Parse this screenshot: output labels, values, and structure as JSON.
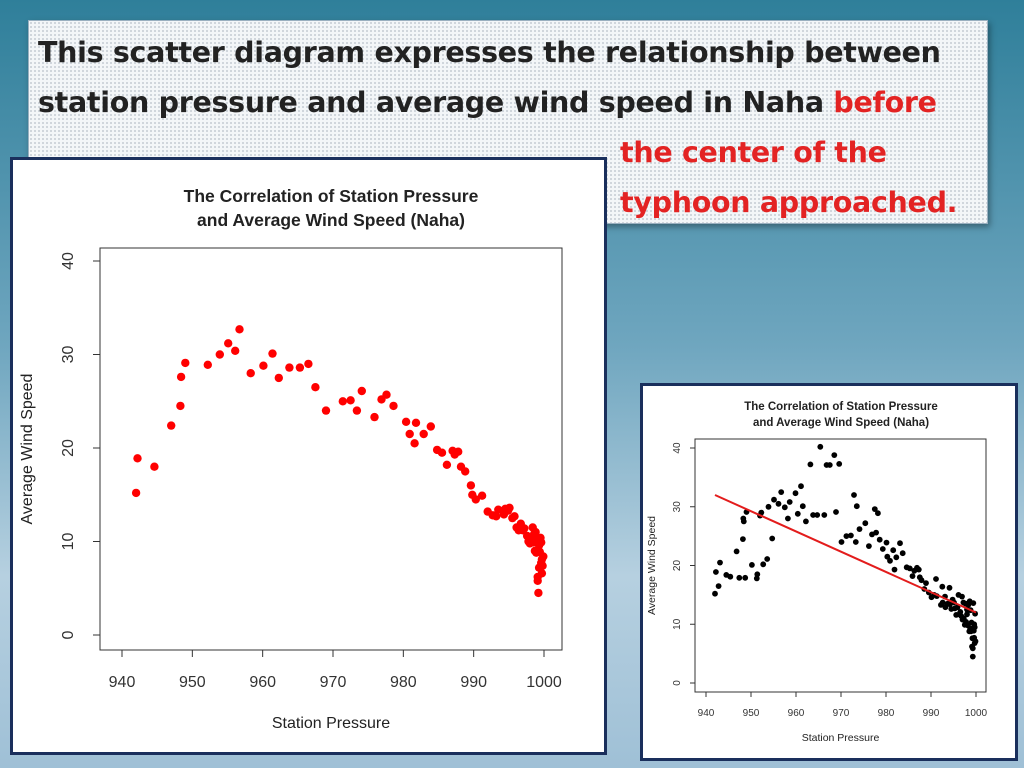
{
  "banner": {
    "line1": "This scatter diagram expresses the relationship between",
    "line2_black": "station pressure and average wind speed in Naha ",
    "line2_red": "before",
    "line3_red": "the center of the",
    "line4_red": "typhoon approached."
  },
  "colors": {
    "left_points": "#ff0000",
    "right_points": "#000000",
    "regression_line": "#e31c1c",
    "emphasis_text": "#e32323"
  },
  "chart_data": [
    {
      "type": "scatter",
      "title_line1": "The Correlation of Station Pressure",
      "title_line2": "and Average Wind Speed (Naha)",
      "xlabel": "Station Pressure",
      "ylabel": "Average Wind Speed",
      "xlim": [
        940,
        1000
      ],
      "ylim": [
        0,
        40
      ],
      "xticks": [
        940,
        950,
        960,
        970,
        980,
        990,
        1000
      ],
      "yticks": [
        0,
        10,
        20,
        30,
        40
      ],
      "series": [
        {
          "color": "#ff0000",
          "points": [
            [
              942,
              15.2
            ],
            [
              942.2,
              18.9
            ],
            [
              944.6,
              18
            ],
            [
              947,
              22.4
            ],
            [
              948.3,
              24.5
            ],
            [
              948.4,
              27.6
            ],
            [
              949,
              29.1
            ],
            [
              952.2,
              28.9
            ],
            [
              953.9,
              30
            ],
            [
              955.1,
              31.2
            ],
            [
              956.1,
              30.4
            ],
            [
              956.7,
              32.7
            ],
            [
              958.3,
              28
            ],
            [
              960.1,
              28.8
            ],
            [
              961.4,
              30.1
            ],
            [
              962.3,
              27.5
            ],
            [
              963.8,
              28.6
            ],
            [
              965.3,
              28.6
            ],
            [
              966.5,
              29
            ],
            [
              967.5,
              26.5
            ],
            [
              969,
              24
            ],
            [
              971.4,
              25
            ],
            [
              972.5,
              25.1
            ],
            [
              973.4,
              24
            ],
            [
              974.1,
              26.1
            ],
            [
              975.9,
              23.3
            ],
            [
              976.9,
              25.2
            ],
            [
              977.6,
              25.7
            ],
            [
              978.6,
              24.5
            ],
            [
              980.4,
              22.8
            ],
            [
              980.9,
              21.5
            ],
            [
              981.6,
              20.5
            ],
            [
              981.8,
              22.7
            ],
            [
              982.9,
              21.5
            ],
            [
              983.9,
              22.3
            ],
            [
              984.8,
              19.8
            ],
            [
              985.5,
              19.5
            ],
            [
              986.2,
              18.2
            ],
            [
              987,
              19.7
            ],
            [
              987.3,
              19.3
            ],
            [
              987.8,
              19.6
            ],
            [
              988.2,
              18
            ],
            [
              988.8,
              17.5
            ],
            [
              989.6,
              16
            ],
            [
              989.8,
              15
            ],
            [
              990.3,
              14.5
            ],
            [
              991.2,
              14.9
            ],
            [
              992,
              13.2
            ],
            [
              992.7,
              12.8
            ],
            [
              993.2,
              12.7
            ],
            [
              993.5,
              13.4
            ],
            [
              994.3,
              12.9
            ],
            [
              994.5,
              13.5
            ],
            [
              994.9,
              13.3
            ],
            [
              995.1,
              13.6
            ],
            [
              995.5,
              12.5
            ],
            [
              995.8,
              12.7
            ],
            [
              996.1,
              11.5
            ],
            [
              996.4,
              11.2
            ],
            [
              996.7,
              11.9
            ],
            [
              997,
              11.2
            ],
            [
              997.2,
              11.4
            ],
            [
              997.6,
              10.6
            ],
            [
              997.8,
              10
            ],
            [
              998,
              9.8
            ],
            [
              998.2,
              10.4
            ],
            [
              998.4,
              11.5
            ],
            [
              998.5,
              9.9
            ],
            [
              998.6,
              10.8
            ],
            [
              998.7,
              9
            ],
            [
              998.8,
              11
            ],
            [
              998.9,
              8.8
            ],
            [
              999,
              10.2
            ],
            [
              999.1,
              6.2
            ],
            [
              999.1,
              5.8
            ],
            [
              999.2,
              4.5
            ],
            [
              999.3,
              9.6
            ],
            [
              999.3,
              7.2
            ],
            [
              999.4,
              8.9
            ],
            [
              999.5,
              10.4
            ],
            [
              999.6,
              7.7
            ],
            [
              999.6,
              9.9
            ],
            [
              999.7,
              8.1
            ],
            [
              999.7,
              6.6
            ],
            [
              999.8,
              7.4
            ],
            [
              999.9,
              8.4
            ]
          ]
        }
      ]
    },
    {
      "type": "scatter",
      "title_line1": "The Correlation of Station Pressure",
      "title_line2": "and Average Wind Speed (Naha)",
      "xlabel": "Station Pressure",
      "ylabel": "Average Wind Speed",
      "xlim": [
        940,
        1000
      ],
      "ylim": [
        0,
        40
      ],
      "xticks": [
        940,
        950,
        960,
        970,
        980,
        990,
        1000
      ],
      "yticks": [
        0,
        10,
        20,
        30,
        40
      ],
      "regression_line": {
        "from": [
          942,
          32
        ],
        "to": [
          1000,
          12
        ]
      },
      "series": [
        {
          "color": "#000000",
          "points": [
            [
              942,
              15.2
            ],
            [
              942.2,
              18.9
            ],
            [
              942.8,
              16.5
            ],
            [
              943.1,
              20.5
            ],
            [
              944.5,
              18.4
            ],
            [
              945.4,
              18.1
            ],
            [
              946.8,
              22.4
            ],
            [
              947.4,
              17.9
            ],
            [
              948.2,
              24.5
            ],
            [
              948.3,
              28
            ],
            [
              948.4,
              27.5
            ],
            [
              948.7,
              17.9
            ],
            [
              949,
              29.1
            ],
            [
              950.2,
              20.1
            ],
            [
              951.3,
              17.8
            ],
            [
              951.4,
              18.5
            ],
            [
              952,
              28.5
            ],
            [
              952.3,
              29
            ],
            [
              952.7,
              20.2
            ],
            [
              953.6,
              21.1
            ],
            [
              953.9,
              30
            ],
            [
              954.7,
              24.6
            ],
            [
              955.1,
              31.2
            ],
            [
              956.1,
              30.5
            ],
            [
              956.7,
              32.5
            ],
            [
              957.5,
              29.9
            ],
            [
              958.2,
              28
            ],
            [
              958.6,
              30.8
            ],
            [
              959.9,
              32.3
            ],
            [
              960.4,
              28.8
            ],
            [
              961.1,
              33.5
            ],
            [
              961.5,
              30.1
            ],
            [
              962.2,
              27.5
            ],
            [
              963.2,
              37.2
            ],
            [
              963.8,
              28.6
            ],
            [
              964.7,
              28.6
            ],
            [
              965.4,
              40.2
            ],
            [
              966.3,
              28.6
            ],
            [
              966.8,
              37.1
            ],
            [
              967.5,
              37.1
            ],
            [
              968.5,
              38.8
            ],
            [
              968.9,
              29.1
            ],
            [
              969.6,
              37.3
            ],
            [
              970.1,
              24
            ],
            [
              971.2,
              25
            ],
            [
              972.2,
              25.1
            ],
            [
              972.9,
              32
            ],
            [
              973.3,
              24
            ],
            [
              973.5,
              30.1
            ],
            [
              974.1,
              26.2
            ],
            [
              975.4,
              27.2
            ],
            [
              976.2,
              23.3
            ],
            [
              976.9,
              25.3
            ],
            [
              977.5,
              29.6
            ],
            [
              977.8,
              25.6
            ],
            [
              978.2,
              28.9
            ],
            [
              978.6,
              24.4
            ],
            [
              979.3,
              22.8
            ],
            [
              980.1,
              23.9
            ],
            [
              980.3,
              21.5
            ],
            [
              980.9,
              20.8
            ],
            [
              981.6,
              22.6
            ],
            [
              981.9,
              19.3
            ],
            [
              982.3,
              21.4
            ],
            [
              983.1,
              23.8
            ],
            [
              983.7,
              22.1
            ],
            [
              984.6,
              19.7
            ],
            [
              985.3,
              19.5
            ],
            [
              985.9,
              18.2
            ],
            [
              986.3,
              19.1
            ],
            [
              986.9,
              19.6
            ],
            [
              987.3,
              19.3
            ],
            [
              987.5,
              18
            ],
            [
              987.9,
              17.5
            ],
            [
              988.5,
              16
            ],
            [
              988.9,
              17
            ],
            [
              989.5,
              15.4
            ],
            [
              990.1,
              14.6
            ],
            [
              990.7,
              15
            ],
            [
              991.1,
              17.7
            ],
            [
              991.3,
              14.8
            ],
            [
              992.2,
              13.3
            ],
            [
              992.5,
              16.4
            ],
            [
              992.6,
              13.7
            ],
            [
              993.1,
              14.7
            ],
            [
              993.2,
              12.9
            ],
            [
              993.7,
              13.5
            ],
            [
              994.1,
              16.2
            ],
            [
              994.2,
              13.4
            ],
            [
              994.5,
              12.6
            ],
            [
              994.8,
              14.2
            ],
            [
              995.1,
              13.7
            ],
            [
              995.3,
              12.7
            ],
            [
              995.6,
              11.6
            ],
            [
              995.9,
              12.9
            ],
            [
              996.1,
              15
            ],
            [
              996.3,
              11.7
            ],
            [
              996.5,
              12.1
            ],
            [
              996.7,
              11.4
            ],
            [
              996.9,
              14.7
            ],
            [
              997,
              10.8
            ],
            [
              997.2,
              13.7
            ],
            [
              997.3,
              11
            ],
            [
              997.5,
              9.9
            ],
            [
              997.7,
              13.5
            ],
            [
              997.8,
              10.4
            ],
            [
              998,
              12.5
            ],
            [
              998,
              11.7
            ],
            [
              998.2,
              9.8
            ],
            [
              998.3,
              13.3
            ],
            [
              998.5,
              8.8
            ],
            [
              998.6,
              13.9
            ],
            [
              998.7,
              9.3
            ],
            [
              998.8,
              12.4
            ],
            [
              998.9,
              8.8
            ],
            [
              999,
              10.3
            ],
            [
              999.1,
              6.2
            ],
            [
              999.1,
              9.2
            ],
            [
              999.2,
              7.6
            ],
            [
              999.3,
              5.9
            ],
            [
              999.3,
              4.5
            ],
            [
              999.4,
              13.6
            ],
            [
              999.5,
              8.9
            ],
            [
              999.6,
              10
            ],
            [
              999.6,
              7.7
            ],
            [
              999.7,
              9.5
            ],
            [
              999.7,
              6.8
            ],
            [
              999.8,
              11.8
            ],
            [
              999.9,
              7.1
            ]
          ]
        }
      ]
    }
  ]
}
